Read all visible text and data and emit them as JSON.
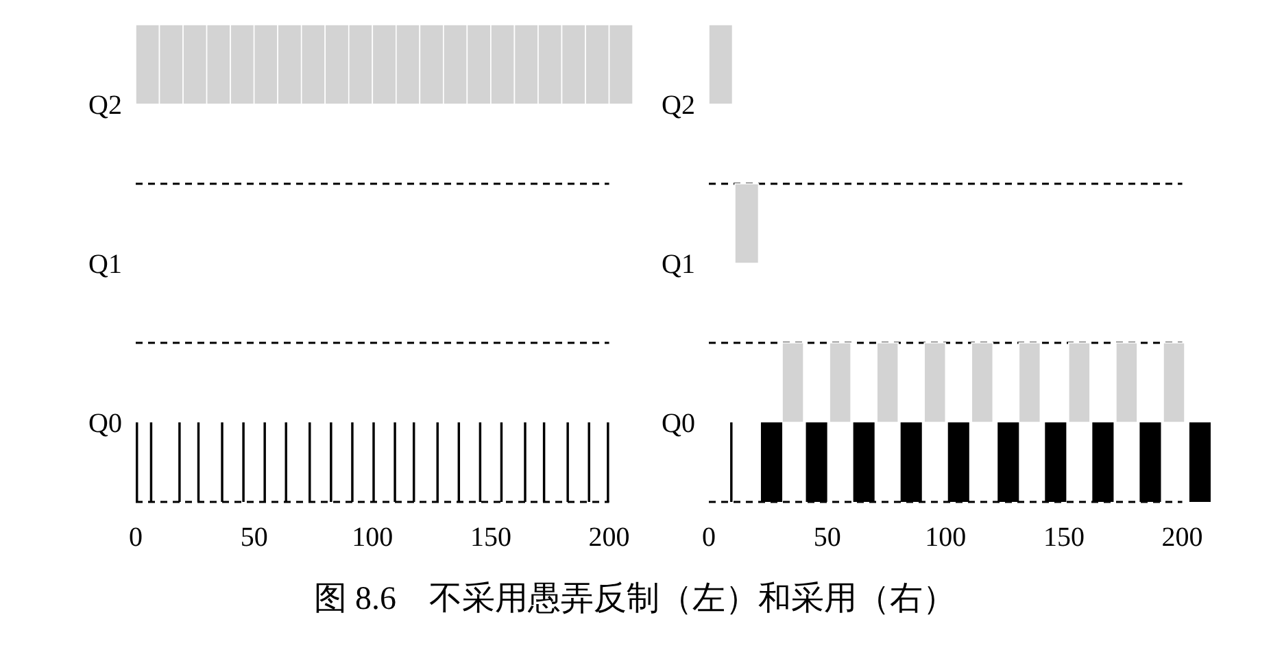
{
  "chart_data": [
    {
      "type": "bar",
      "orientation": "horizontal",
      "categories": [
        "Q2",
        "Q1",
        "Q0"
      ],
      "xlim": [
        0,
        212
      ],
      "xticks": [
        0,
        50,
        100,
        150,
        200
      ],
      "grid": true,
      "annotations": [
        "图 8.6　不采用愚弄反制（左）和采用（右）"
      ],
      "series": [
        {
          "color": "#d3d3d3",
          "x": [
            "Q2",
            "Q2",
            "Q2",
            "Q2",
            "Q2",
            "Q2",
            "Q2",
            "Q2",
            "Q2",
            "Q2",
            "Q2",
            "Q2",
            "Q2",
            "Q2",
            "Q2",
            "Q2",
            "Q2",
            "Q2",
            "Q2",
            "Q2",
            "Q2"
          ],
          "base": [
            0,
            10,
            20,
            30,
            40,
            50,
            60,
            70,
            80,
            90,
            100,
            110,
            120,
            130,
            140,
            150,
            160,
            170,
            180,
            190,
            200
          ],
          "values": [
            10,
            10,
            10,
            10,
            10,
            10,
            10,
            10,
            10,
            10,
            10,
            10,
            10,
            10,
            10,
            10,
            10,
            10,
            10,
            10,
            10
          ]
        },
        {
          "color": "#000000",
          "x": [
            "Q0",
            "Q0",
            "Q0",
            "Q0",
            "Q0",
            "Q0",
            "Q0",
            "Q0",
            "Q0",
            "Q0",
            "Q0",
            "Q0",
            "Q0",
            "Q0",
            "Q0",
            "Q0",
            "Q0",
            "Q0",
            "Q0",
            "Q0",
            "Q0",
            "Q0",
            "Q0"
          ],
          "base": [
            0,
            6,
            18,
            26,
            36,
            45,
            54,
            63,
            73,
            82,
            91,
            100,
            109,
            117,
            127,
            136,
            145,
            154,
            164,
            172,
            182,
            191,
            199
          ],
          "values": [
            1,
            1,
            1,
            1,
            1,
            1,
            1,
            1,
            1,
            1,
            1,
            1,
            1,
            1,
            1,
            1,
            1,
            1,
            1,
            1,
            1,
            1,
            1
          ]
        }
      ]
    },
    {
      "type": "bar",
      "orientation": "horizontal",
      "categories": [
        "Q2",
        "Q1",
        "Q0"
      ],
      "xlim": [
        0,
        212
      ],
      "xticks": [
        0,
        50,
        100,
        150,
        200
      ],
      "grid": true,
      "series": [
        {
          "color": "#d3d3d3",
          "x": [
            "Q2",
            "Q1",
            "Q0",
            "Q0",
            "Q0",
            "Q0",
            "Q0",
            "Q0",
            "Q0",
            "Q0",
            "Q0"
          ],
          "base": [
            0,
            11,
            31,
            51,
            71,
            91,
            111,
            131,
            152,
            172,
            192
          ],
          "values": [
            10,
            10,
            9,
            9,
            9,
            9,
            9,
            9,
            9,
            9,
            9
          ]
        },
        {
          "color": "#000000",
          "x": [
            "Q0",
            "Q0",
            "Q0",
            "Q0",
            "Q0",
            "Q0",
            "Q0",
            "Q0",
            "Q0",
            "Q0",
            "Q0"
          ],
          "base": [
            9,
            22,
            41,
            61,
            81,
            101,
            122,
            142,
            162,
            182,
            203
          ],
          "values": [
            1,
            9,
            9,
            9,
            9,
            9,
            9,
            9,
            9,
            9,
            9
          ]
        }
      ]
    }
  ]
}
